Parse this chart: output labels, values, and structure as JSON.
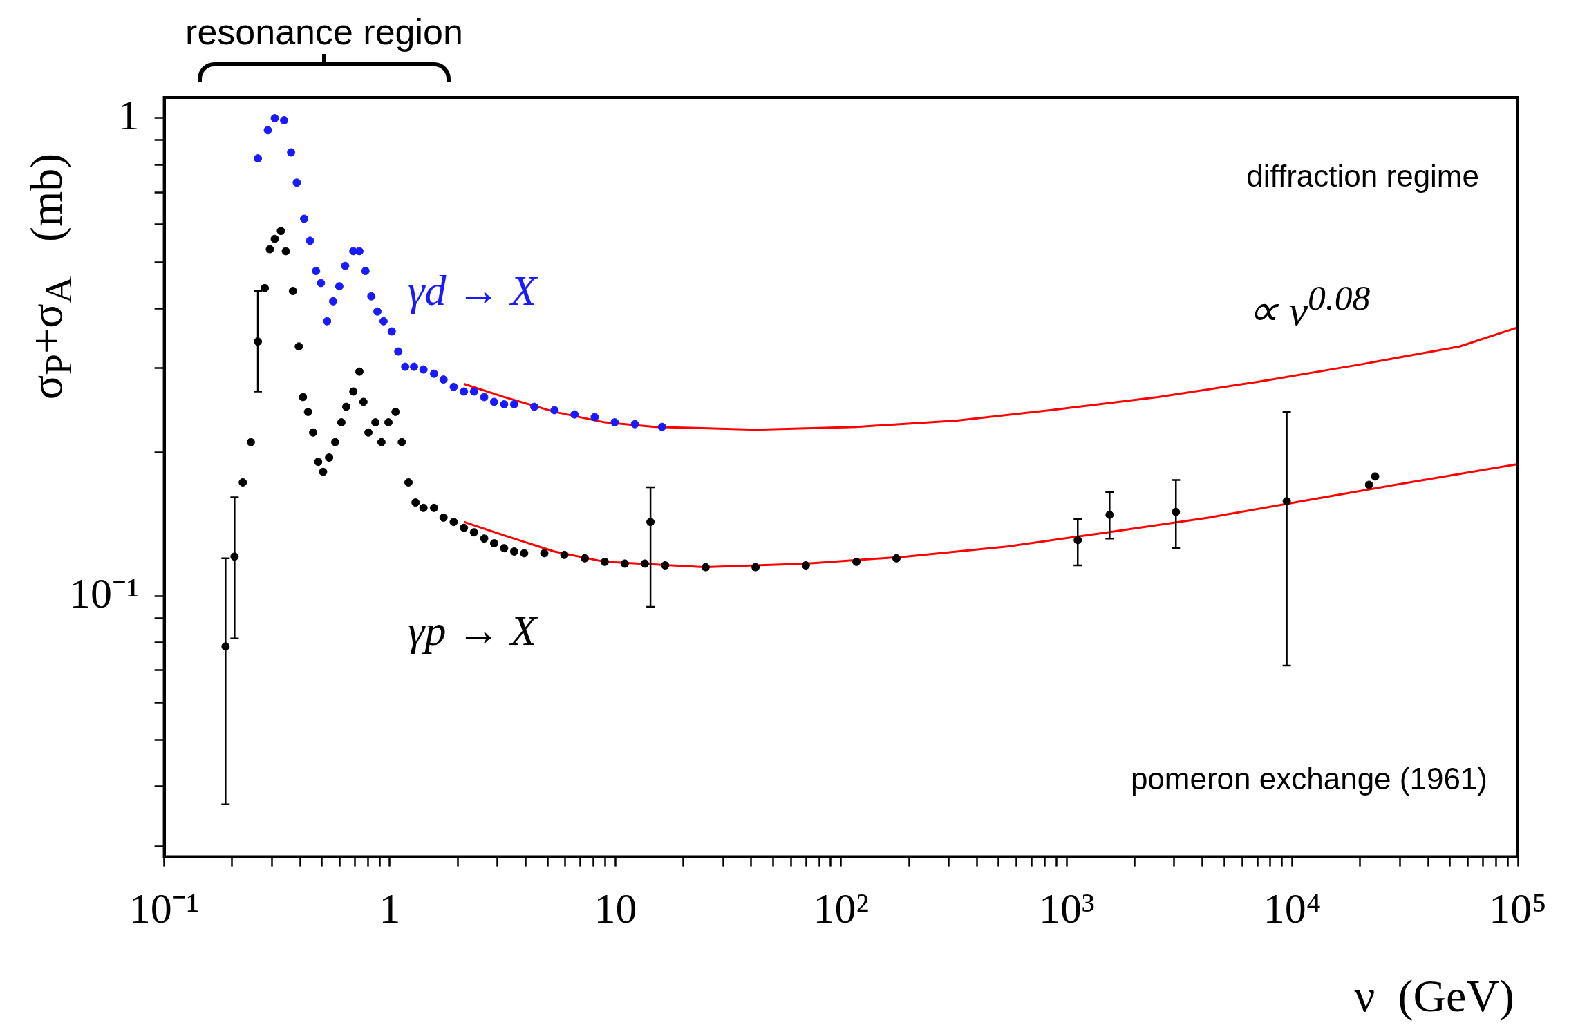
{
  "chart_data": {
    "type": "scatter",
    "xlabel": "ν  (GeV)",
    "ylabel": "σ$_{P}$+σ$_{A}$   (mb)",
    "log": "xy",
    "grid": false,
    "xlim": [
      0.1,
      100000
    ],
    "ylim": [
      0.0285,
      1.105
    ],
    "xticks": [
      {
        "value": 0.1,
        "label": "10⁻¹"
      },
      {
        "value": 0.2,
        "label": null
      },
      {
        "value": 0.3,
        "label": null
      },
      {
        "value": 0.4,
        "label": null
      },
      {
        "value": 0.5,
        "label": null
      },
      {
        "value": 0.6,
        "label": null
      },
      {
        "value": 0.7,
        "label": null
      },
      {
        "value": 0.8,
        "label": null
      },
      {
        "value": 0.9,
        "label": null
      },
      1,
      {
        "value": 2,
        "label": null
      },
      {
        "value": 3,
        "label": null
      },
      {
        "value": 4,
        "label": null
      },
      {
        "value": 5,
        "label": null
      },
      {
        "value": 6,
        "label": null
      },
      {
        "value": 7,
        "label": null
      },
      {
        "value": 8,
        "label": null
      },
      {
        "value": 9,
        "label": null
      },
      10,
      {
        "value": 20,
        "label": null
      },
      {
        "value": 30,
        "label": null
      },
      {
        "value": 40,
        "label": null
      },
      {
        "value": 50,
        "label": null
      },
      {
        "value": 60,
        "label": null
      },
      {
        "value": 70,
        "label": null
      },
      {
        "value": 80,
        "label": null
      },
      {
        "value": 90,
        "label": null
      },
      {
        "value": 100,
        "label": "10²"
      },
      {
        "value": 200,
        "label": null
      },
      {
        "value": 300,
        "label": null
      },
      {
        "value": 400,
        "label": null
      },
      {
        "value": 500,
        "label": null
      },
      {
        "value": 600,
        "label": null
      },
      {
        "value": 700,
        "label": null
      },
      {
        "value": 800,
        "label": null
      },
      {
        "value": 900,
        "label": null
      },
      {
        "value": 1000,
        "label": "10³"
      },
      {
        "value": 2000,
        "label": null
      },
      {
        "value": 3000,
        "label": null
      },
      {
        "value": 4000,
        "label": null
      },
      {
        "value": 5000,
        "label": null
      },
      {
        "value": 6000,
        "label": null
      },
      {
        "value": 7000,
        "label": null
      },
      {
        "value": 8000,
        "label": null
      },
      {
        "value": 9000,
        "label": null
      },
      {
        "value": 10000,
        "label": "10⁴"
      },
      {
        "value": 20000,
        "label": null
      },
      {
        "value": 30000,
        "label": null
      },
      {
        "value": 40000,
        "label": null
      },
      {
        "value": 50000,
        "label": null
      },
      {
        "value": 60000,
        "label": null
      },
      {
        "value": 70000,
        "label": null
      },
      {
        "value": 80000,
        "label": null
      },
      {
        "value": 90000,
        "label": null
      },
      {
        "value": 100000,
        "label": "10⁵"
      }
    ],
    "yticks": [
      {
        "value": 0.03,
        "label": null
      },
      {
        "value": 0.04,
        "label": null
      },
      {
        "value": 0.05,
        "label": null
      },
      {
        "value": 0.06,
        "label": null
      },
      {
        "value": 0.07,
        "label": null
      },
      {
        "value": 0.08,
        "label": null
      },
      {
        "value": 0.09,
        "label": null
      },
      {
        "value": 0.1,
        "label": "10⁻¹"
      },
      {
        "value": 0.2,
        "label": null
      },
      {
        "value": 0.3,
        "label": null
      },
      {
        "value": 0.4,
        "label": null
      },
      {
        "value": 0.5,
        "label": null
      },
      {
        "value": 0.6,
        "label": null
      },
      {
        "value": 0.7,
        "label": null
      },
      {
        "value": 0.8,
        "label": null
      },
      {
        "value": 0.9,
        "label": null
      },
      1
    ],
    "annotations": [
      "resonance region",
      "diffraction regime",
      "∝ ν$^{0.08}$",
      "pomeron exchange (1961)"
    ],
    "series": [
      {
        "name": "γd → X",
        "marker": "circle",
        "color": "#1a1aff",
        "x": [
          0.26,
          0.288,
          0.309,
          0.34,
          0.365,
          0.387,
          0.417,
          0.443,
          0.471,
          0.495,
          0.527,
          0.561,
          0.597,
          0.634,
          0.689,
          0.733,
          0.78,
          0.828,
          0.881,
          0.938,
          1.02,
          1.09,
          1.17,
          1.28,
          1.41,
          1.57,
          1.73,
          1.92,
          2.13,
          2.36,
          2.62,
          2.9,
          3.21,
          3.56,
          4.37,
          5.37,
          6.59,
          8.09,
          9.93,
          12.2,
          16.1
        ],
        "values": [
          0.824,
          0.944,
          1.0,
          0.99,
          0.848,
          0.733,
          0.616,
          0.554,
          0.479,
          0.452,
          0.376,
          0.414,
          0.445,
          0.491,
          0.527,
          0.527,
          0.479,
          0.424,
          0.394,
          0.376,
          0.358,
          0.325,
          0.302,
          0.302,
          0.298,
          0.292,
          0.284,
          0.274,
          0.268,
          0.268,
          0.261,
          0.255,
          0.252,
          0.252,
          0.249,
          0.245,
          0.24,
          0.237,
          0.231,
          0.229,
          0.226
        ]
      },
      {
        "name": "γp → X",
        "marker": "circle",
        "color": "#000000",
        "x": [
          0.187,
          0.205,
          0.223,
          0.242,
          0.26,
          0.279,
          0.294,
          0.309,
          0.329,
          0.346,
          0.372,
          0.395,
          0.412,
          0.434,
          0.457,
          0.481,
          0.506,
          0.538,
          0.573,
          0.61,
          0.641,
          0.689,
          0.733,
          0.764,
          0.804,
          0.863,
          0.918,
          0.986,
          1.06,
          1.13,
          1.21,
          1.3,
          1.41,
          1.57,
          1.73,
          1.92,
          2.13,
          2.36,
          2.62,
          2.9,
          3.21,
          3.56,
          3.94,
          4.84,
          5.94,
          7.31,
          8.97,
          11.0,
          13.5,
          16.6,
          25.1,
          41.8,
          69.8,
          117,
          176,
          1120,
          1550,
          3050,
          9450,
          21900,
          23300,
          14.3
        ],
        "values": [
          0.0785,
          0.121,
          0.173,
          0.21,
          0.341,
          0.441,
          0.532,
          0.559,
          0.581,
          0.527,
          0.435,
          0.333,
          0.261,
          0.243,
          0.22,
          0.191,
          0.182,
          0.195,
          0.21,
          0.231,
          0.249,
          0.268,
          0.295,
          0.255,
          0.22,
          0.231,
          0.21,
          0.231,
          0.243,
          0.21,
          0.173,
          0.157,
          0.153,
          0.153,
          0.146,
          0.143,
          0.139,
          0.136,
          0.132,
          0.129,
          0.126,
          0.124,
          0.123,
          0.123,
          0.122,
          0.12,
          0.118,
          0.117,
          0.117,
          0.116,
          0.115,
          0.115,
          0.116,
          0.118,
          0.12,
          0.131,
          0.148,
          0.15,
          0.158,
          0.171,
          0.178,
          0.143
        ],
        "errors": [
          [
            0.0367,
            0.12
          ],
          [
            0.0816,
            0.161
          ],
          null,
          null,
          [
            0.268,
            0.435
          ],
          null,
          null,
          null,
          null,
          null,
          null,
          null,
          null,
          null,
          null,
          null,
          null,
          null,
          null,
          null,
          null,
          null,
          null,
          null,
          null,
          null,
          null,
          null,
          null,
          null,
          null,
          null,
          null,
          null,
          null,
          null,
          null,
          null,
          null,
          null,
          null,
          null,
          null,
          null,
          null,
          null,
          null,
          null,
          null,
          null,
          null,
          null,
          null,
          null,
          null,
          [
            0.116,
            0.145
          ],
          [
            0.132,
            0.165
          ],
          [
            0.126,
            0.175
          ],
          [
            0.0716,
            0.243
          ],
          null,
          null,
          [
            0.095,
            0.169
          ]
        ]
      },
      {
        "type": "line",
        "marker": "none",
        "color": "#ff0000",
        "x": [
          2.13,
          3.21,
          5.37,
          8.97,
          15.0,
          41.8,
          117,
          326,
          910,
          2540,
          7100,
          19800,
          55200,
          100000
        ],
        "values": [
          0.278,
          0.261,
          0.243,
          0.231,
          0.226,
          0.223,
          0.226,
          0.233,
          0.246,
          0.261,
          0.281,
          0.305,
          0.333,
          0.365
        ]
      },
      {
        "type": "line",
        "marker": "none",
        "color": "#ff0000",
        "x": [
          2.13,
          3.21,
          5.37,
          8.97,
          25.1,
          69.8,
          195,
          545,
          1520,
          4250,
          11900,
          33000,
          100000
        ],
        "values": [
          0.143,
          0.134,
          0.124,
          0.118,
          0.115,
          0.117,
          0.121,
          0.127,
          0.136,
          0.146,
          0.159,
          0.173,
          0.189
        ]
      }
    ]
  }
}
